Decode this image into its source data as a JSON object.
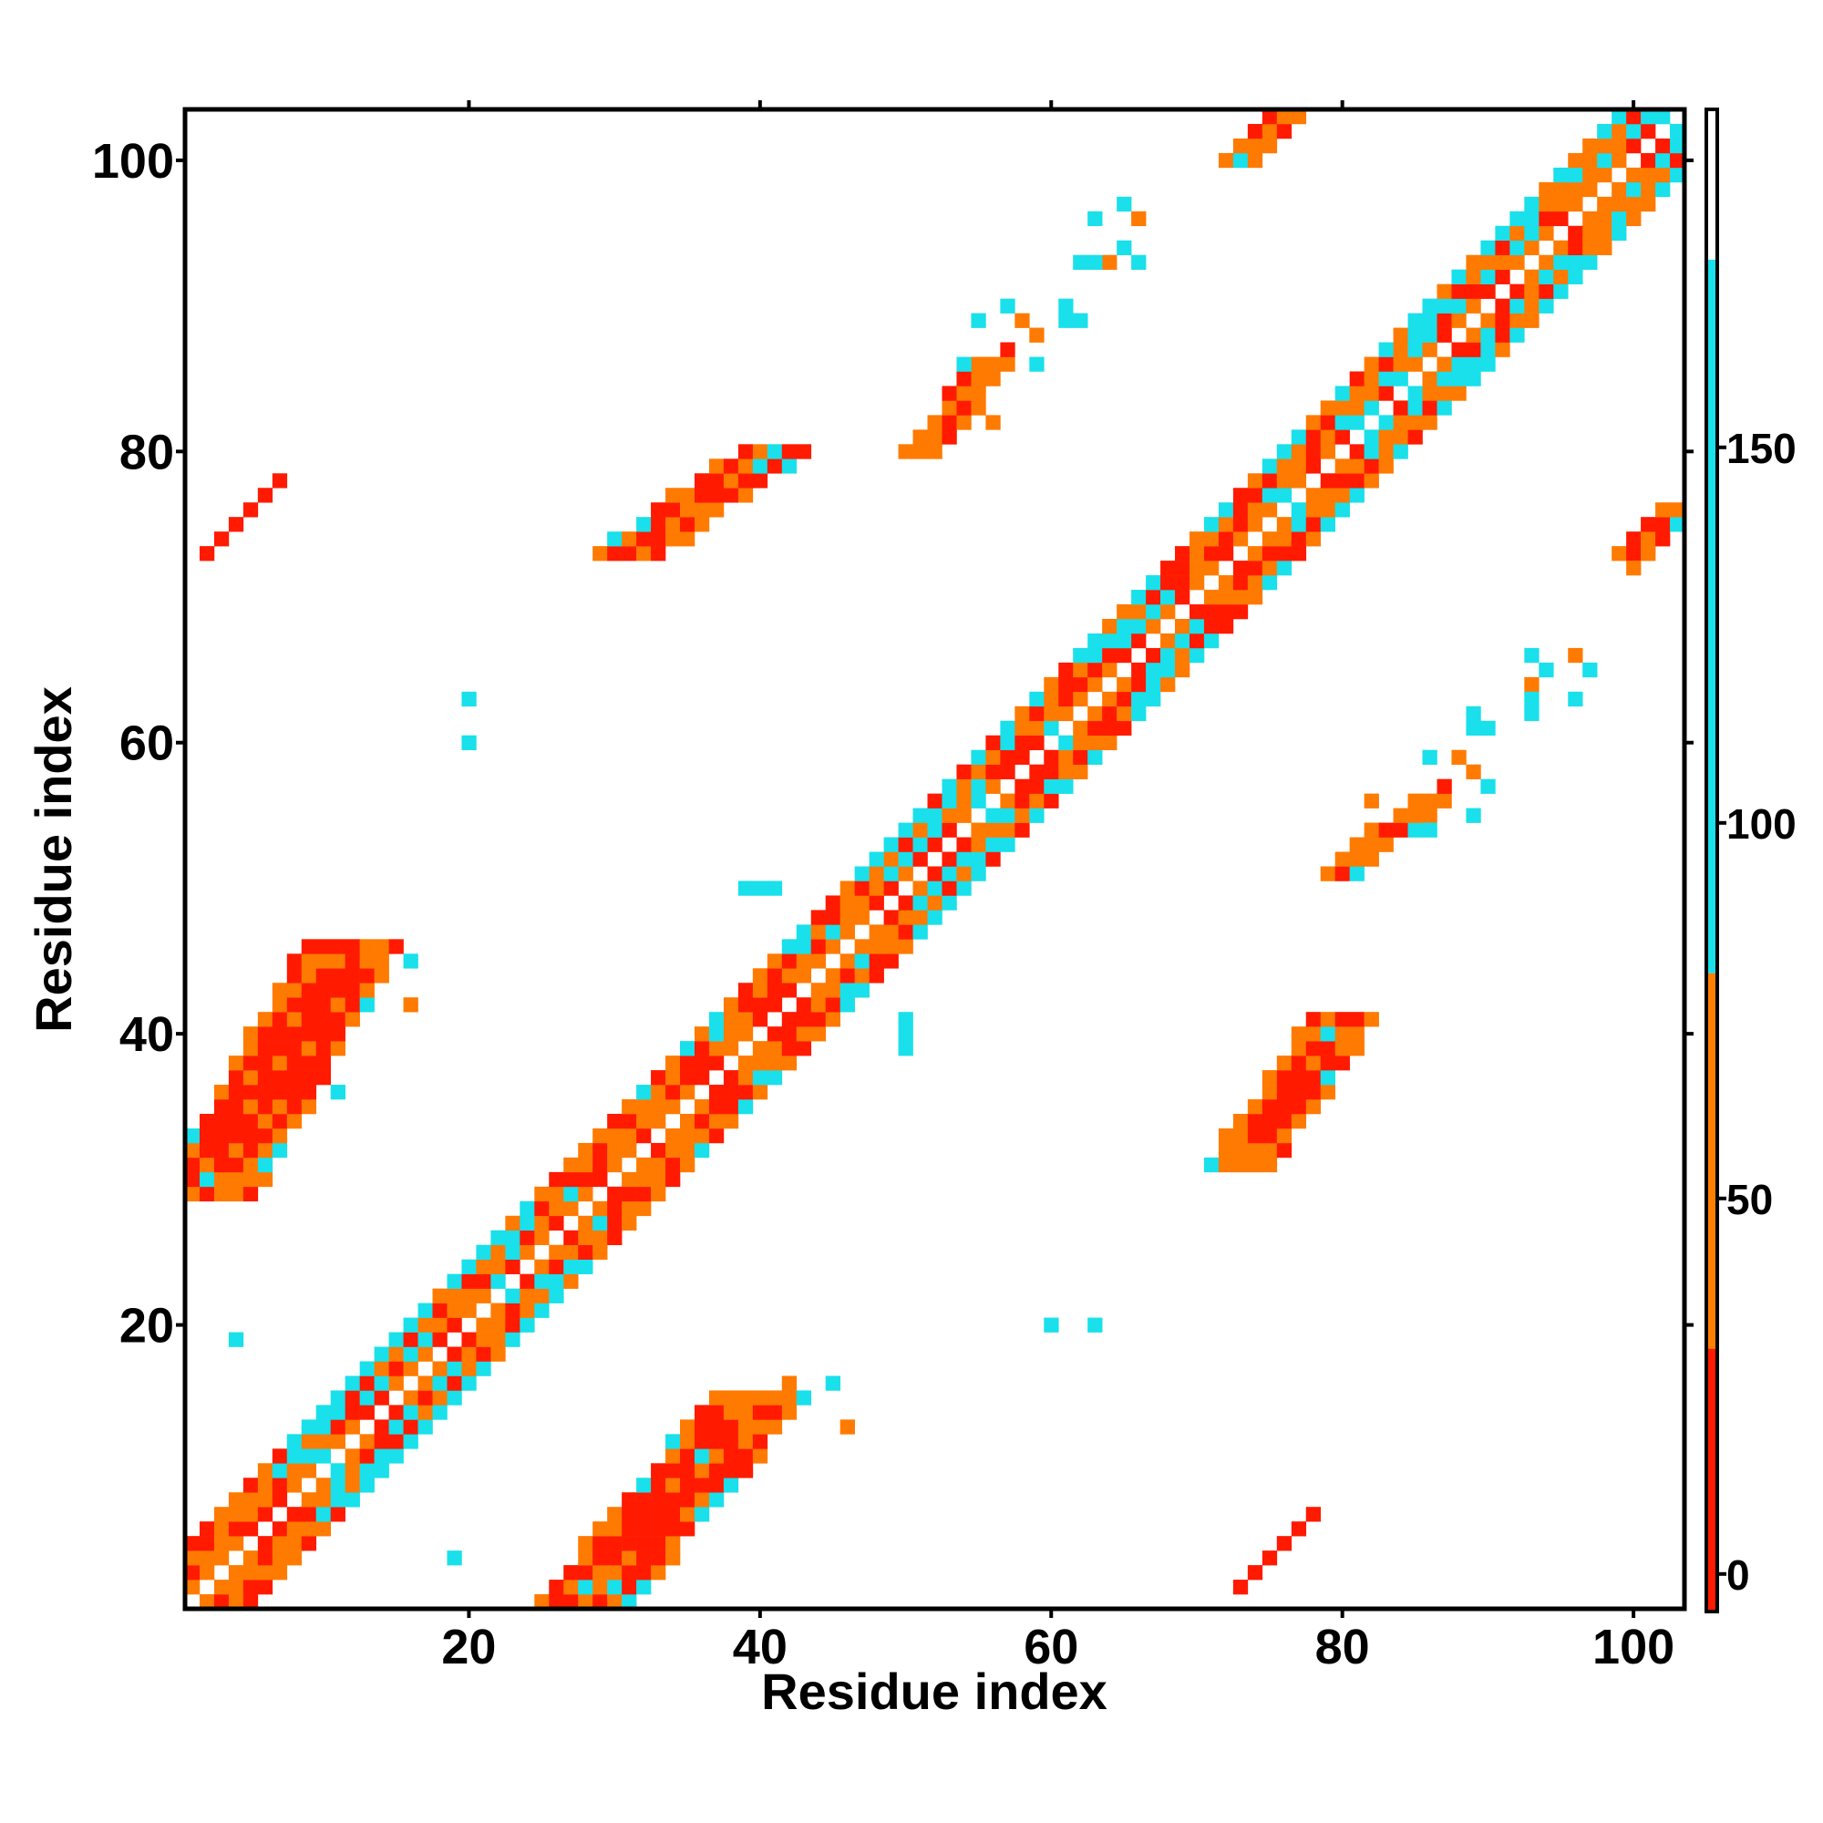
{
  "chart_data": {
    "type": "heatmap",
    "title": "",
    "xlabel": "Residue index",
    "ylabel": "Residue index",
    "xlim": [
      0.5,
      103.5
    ],
    "ylim": [
      0.5,
      103.5
    ],
    "xticks": [
      20,
      40,
      60,
      80,
      100
    ],
    "yticks": [
      20,
      40,
      60,
      80,
      100
    ],
    "colorbar": {
      "ticks": [
        0,
        50,
        100,
        150
      ],
      "range": [
        -5,
        195
      ],
      "bands": [
        {
          "from": -5,
          "to": 30,
          "color": "#ff1a00"
        },
        {
          "from": 30,
          "to": 80,
          "color": "#ff8000"
        },
        {
          "from": 80,
          "to": 175,
          "color": "#19e0ea"
        },
        {
          "from": 175,
          "to": 195,
          "color": "#ffffff"
        }
      ]
    },
    "colors": {
      "red": "#ff1a00",
      "orange": "#ff7a00",
      "cyan": "#19e0ea"
    },
    "description_of_values": "",
    "diagonal_band": {
      "i_start": 1,
      "i_end": 103,
      "offsets": [
        1,
        2,
        3,
        4
      ]
    },
    "features": [
      {
        "x0": 2,
        "y0": 29,
        "x1": 12,
        "y1": 46,
        "width": 3,
        "color": "red"
      },
      {
        "x0": 28,
        "y0": 1,
        "x1": 40,
        "y1": 15,
        "width": 3,
        "color": "red"
      },
      {
        "x0": 31,
        "y0": 73,
        "x1": 41,
        "y1": 80,
        "width": 2,
        "color": "red"
      },
      {
        "x0": 73,
        "y0": 31,
        "x1": 80,
        "y1": 41,
        "width": 2,
        "color": "red"
      },
      {
        "x0": 2,
        "y0": 73,
        "x1": 7,
        "y1": 78,
        "width": 0,
        "color": "red"
      },
      {
        "x0": 73,
        "y0": 2,
        "x1": 78,
        "y1": 7,
        "width": 0,
        "color": "red"
      },
      {
        "x0": 73,
        "y0": 100,
        "x1": 76,
        "y1": 103,
        "width": 1,
        "color": "red"
      },
      {
        "x0": 100,
        "y0": 73,
        "x1": 103,
        "y1": 76,
        "width": 1,
        "color": "red"
      },
      {
        "x0": 51,
        "y0": 80,
        "x1": 56,
        "y1": 86,
        "width": 1,
        "color": "red"
      },
      {
        "x0": 80,
        "y0": 51,
        "x1": 86,
        "y1": 56,
        "width": 1,
        "color": "red"
      }
    ],
    "scatter_cells": [
      [
        20,
        63,
        "cyan"
      ],
      [
        20,
        60,
        "cyan"
      ],
      [
        63,
        20,
        "cyan"
      ],
      [
        60,
        20,
        "cyan"
      ],
      [
        4,
        19,
        "cyan"
      ],
      [
        19,
        4,
        "cyan"
      ],
      [
        50,
        41,
        "cyan"
      ],
      [
        41,
        50,
        "cyan"
      ],
      [
        39,
        50,
        "cyan"
      ],
      [
        40,
        50,
        "cyan"
      ],
      [
        50,
        39,
        "cyan"
      ],
      [
        50,
        40,
        "cyan"
      ],
      [
        16,
        45,
        "cyan"
      ],
      [
        45,
        16,
        "cyan"
      ],
      [
        16,
        42,
        "orange"
      ],
      [
        42,
        16,
        "orange"
      ],
      [
        11,
        36,
        "cyan"
      ],
      [
        36,
        11,
        "cyan"
      ],
      [
        13,
        46,
        "orange"
      ],
      [
        46,
        13,
        "orange"
      ],
      [
        56,
        82,
        "orange"
      ],
      [
        82,
        56,
        "orange"
      ],
      [
        55,
        89,
        "cyan"
      ],
      [
        89,
        55,
        "cyan"
      ],
      [
        57,
        90,
        "cyan"
      ],
      [
        90,
        57,
        "cyan"
      ],
      [
        58,
        89,
        "orange"
      ],
      [
        89,
        58,
        "orange"
      ],
      [
        61,
        90,
        "cyan"
      ],
      [
        90,
        61,
        "cyan"
      ],
      [
        62,
        89,
        "cyan"
      ],
      [
        89,
        62,
        "cyan"
      ],
      [
        64,
        93,
        "orange"
      ],
      [
        93,
        64,
        "orange"
      ],
      [
        65,
        97,
        "cyan"
      ],
      [
        97,
        65,
        "cyan"
      ],
      [
        66,
        96,
        "orange"
      ],
      [
        96,
        66,
        "orange"
      ],
      [
        66,
        93,
        "cyan"
      ],
      [
        93,
        66,
        "cyan"
      ],
      [
        62,
        93,
        "cyan"
      ],
      [
        93,
        62,
        "cyan"
      ],
      [
        65,
        94,
        "cyan"
      ],
      [
        94,
        65,
        "cyan"
      ],
      [
        54,
        86,
        "cyan"
      ],
      [
        86,
        54,
        "cyan"
      ],
      [
        57,
        87,
        "red"
      ],
      [
        87,
        57,
        "red"
      ],
      [
        59,
        86,
        "cyan"
      ],
      [
        86,
        59,
        "cyan"
      ],
      [
        55,
        86,
        "orange"
      ],
      [
        86,
        55,
        "orange"
      ],
      [
        72,
        100,
        "orange"
      ],
      [
        100,
        72,
        "orange"
      ],
      [
        74,
        101,
        "orange"
      ],
      [
        101,
        74,
        "orange"
      ],
      [
        93,
        63,
        "cyan"
      ],
      [
        63,
        93,
        "cyan"
      ],
      [
        96,
        63,
        "cyan"
      ],
      [
        63,
        96,
        "cyan"
      ],
      [
        88,
        59,
        "orange"
      ],
      [
        59,
        88,
        "orange"
      ],
      [
        89,
        61,
        "cyan"
      ],
      [
        61,
        89,
        "cyan"
      ]
    ]
  }
}
